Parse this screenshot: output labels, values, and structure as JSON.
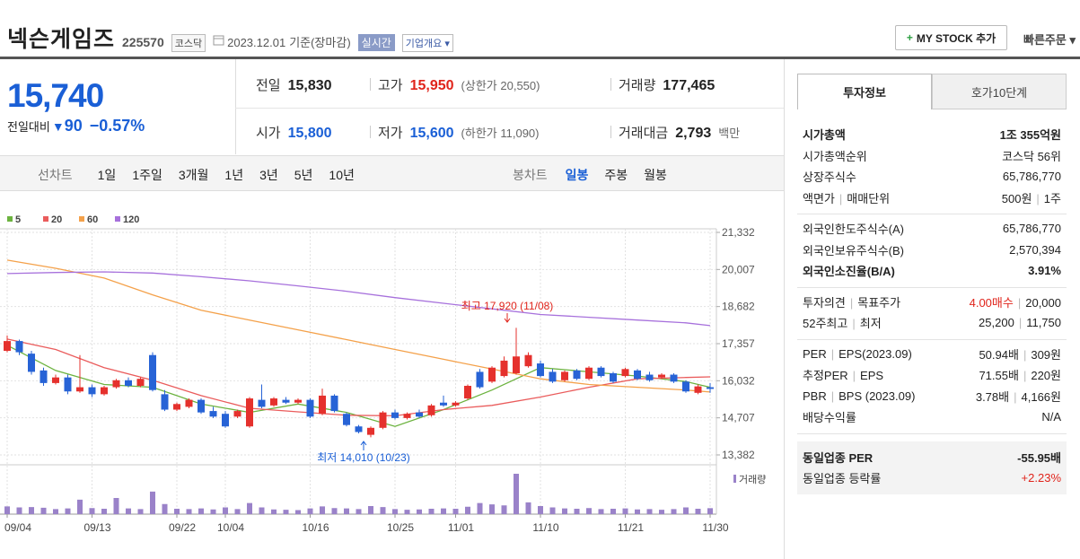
{
  "header": {
    "name": "넥슨게임즈",
    "code": "225570",
    "market": "코스닥",
    "date": "2023.12.01",
    "basis": "기준(장마감)",
    "realtime": "실시간",
    "company": "기업개요",
    "mystock": "MY STOCK 추가",
    "quick_order": "빠른주문"
  },
  "quote": {
    "price": "15,740",
    "change_label": "전일대비",
    "change": "90",
    "change_rate": "−0.57%",
    "cells": [
      {
        "label": "전일",
        "value": "15,830"
      },
      {
        "label": "고가",
        "value": "15,950",
        "extra": "(상한가 20,550)"
      },
      {
        "label": "거래량",
        "value": "177,465"
      },
      {
        "label": "시가",
        "value": "15,800"
      },
      {
        "label": "저가",
        "value": "15,600",
        "extra": "(하한가 11,090)"
      },
      {
        "label": "거래대금",
        "value": "2,793",
        "extra": "백만"
      }
    ]
  },
  "periods": {
    "line_label": "선차트",
    "line": [
      "1일",
      "1주일",
      "3개월",
      "1년",
      "3년",
      "5년",
      "10년"
    ],
    "candle_label": "봉차트",
    "candle": [
      "일봉",
      "주봉",
      "월봉"
    ]
  },
  "chart_data": {
    "type": "candlestick",
    "categories": [
      "09/04",
      null,
      null,
      null,
      null,
      null,
      null,
      "09/13",
      null,
      null,
      null,
      null,
      null,
      null,
      "09/22",
      null,
      null,
      null,
      "10/04",
      null,
      null,
      null,
      null,
      null,
      null,
      "10/16",
      null,
      null,
      null,
      null,
      null,
      null,
      "10/25",
      null,
      null,
      null,
      null,
      "11/01",
      null,
      null,
      null,
      null,
      null,
      null,
      "11/10",
      null,
      null,
      null,
      null,
      null,
      null,
      "11/21",
      null,
      null,
      null,
      null,
      null,
      null,
      "11/30"
    ],
    "candles": [
      [
        17100,
        17650,
        17050,
        17450
      ],
      [
        17450,
        17500,
        16950,
        17050
      ],
      [
        17000,
        17100,
        16250,
        16350
      ],
      [
        16400,
        16500,
        15850,
        15950
      ],
      [
        15950,
        16250,
        15900,
        16150
      ],
      [
        16150,
        16250,
        15550,
        15650
      ],
      [
        15650,
        16950,
        15600,
        15800
      ],
      [
        15800,
        15900,
        15450,
        15550
      ],
      [
        15550,
        15850,
        15500,
        15800
      ],
      [
        15800,
        16100,
        15750,
        16050
      ],
      [
        16050,
        16150,
        15800,
        15850
      ],
      [
        15850,
        16150,
        15800,
        16100
      ],
      [
        16950,
        17050,
        15650,
        15700
      ],
      [
        15550,
        15700,
        14950,
        15000
      ],
      [
        15000,
        15250,
        14950,
        15200
      ],
      [
        15100,
        15400,
        15050,
        15350
      ],
      [
        15350,
        15400,
        14850,
        14900
      ],
      [
        14950,
        15100,
        14700,
        14750
      ],
      [
        14850,
        14950,
        14350,
        14400
      ],
      [
        14750,
        15000,
        14700,
        14950
      ],
      [
        14400,
        15450,
        14350,
        15400
      ],
      [
        15350,
        15900,
        15050,
        15100
      ],
      [
        15150,
        15450,
        15100,
        15400
      ],
      [
        15350,
        15450,
        15200,
        15250
      ],
      [
        15250,
        15400,
        15200,
        15350
      ],
      [
        15350,
        15400,
        14700,
        14750
      ],
      [
        14850,
        15750,
        14800,
        15500
      ],
      [
        15500,
        15550,
        14900,
        14950
      ],
      [
        14850,
        14900,
        14400,
        14450
      ],
      [
        14400,
        14450,
        14150,
        14200
      ],
      [
        14100,
        14400,
        14010,
        14350
      ],
      [
        14350,
        14950,
        14300,
        14900
      ],
      [
        14900,
        15000,
        14650,
        14700
      ],
      [
        14700,
        14900,
        14650,
        14850
      ],
      [
        14900,
        15000,
        14700,
        14750
      ],
      [
        14800,
        15200,
        14750,
        15150
      ],
      [
        15250,
        15500,
        15100,
        15150
      ],
      [
        15150,
        15300,
        15100,
        15250
      ],
      [
        15400,
        15900,
        15350,
        15850
      ],
      [
        16350,
        16450,
        15750,
        15800
      ],
      [
        16000,
        16550,
        15950,
        16500
      ],
      [
        16200,
        16900,
        16150,
        16750
      ],
      [
        16300,
        17920,
        16250,
        16900
      ],
      [
        16550,
        17050,
        16500,
        16950
      ],
      [
        16650,
        16750,
        16150,
        16200
      ],
      [
        16350,
        16450,
        15950,
        16000
      ],
      [
        16050,
        16400,
        16000,
        16350
      ],
      [
        16400,
        16450,
        16050,
        16100
      ],
      [
        16100,
        16550,
        16050,
        16500
      ],
      [
        16500,
        16550,
        16150,
        16200
      ],
      [
        16300,
        16350,
        15950,
        16000
      ],
      [
        16200,
        16500,
        16150,
        16450
      ],
      [
        16400,
        16450,
        16050,
        16100
      ],
      [
        16250,
        16350,
        16000,
        16050
      ],
      [
        16150,
        16300,
        16100,
        16250
      ],
      [
        16250,
        16300,
        15950,
        16000
      ],
      [
        16000,
        16050,
        15600,
        15650
      ],
      [
        15600,
        15900,
        15550,
        15830
      ],
      [
        15800,
        15950,
        15600,
        15740
      ]
    ],
    "up_color": "#e5312d",
    "down_color": "#2763d6",
    "ylim": [
      13382,
      21332
    ],
    "yticks": [
      {
        "value": 13382,
        "label": "13,382"
      },
      {
        "value": 14707,
        "label": "14,707"
      },
      {
        "value": 16032,
        "label": "16,032"
      },
      {
        "value": 17357,
        "label": "17,357"
      },
      {
        "value": 18682,
        "label": "18,682"
      },
      {
        "value": 20007,
        "label": "20,007"
      },
      {
        "value": 21332,
        "label": "21,332"
      }
    ],
    "grid": true,
    "series": [
      {
        "name": "5",
        "color": "#6cb33f",
        "x": [
          0,
          4,
          8,
          12,
          16,
          20,
          24,
          28,
          32,
          36,
          40,
          44,
          48,
          52,
          56,
          58
        ],
        "values": [
          17300,
          16400,
          15900,
          15800,
          15200,
          14900,
          15200,
          14900,
          14400,
          15000,
          15700,
          16500,
          16350,
          16200,
          16000,
          15800
        ]
      },
      {
        "name": "20",
        "color": "#ea5c5c",
        "x": [
          0,
          4,
          8,
          12,
          16,
          20,
          24,
          28,
          32,
          36,
          40,
          44,
          48,
          52,
          56,
          58
        ],
        "values": [
          17520,
          17150,
          16500,
          16050,
          15500,
          15050,
          14920,
          14800,
          14780,
          15000,
          15150,
          15450,
          15800,
          16100,
          16150,
          16170
        ]
      },
      {
        "name": "60",
        "color": "#f4a14a",
        "x": [
          0,
          4,
          8,
          12,
          16,
          20,
          24,
          28,
          32,
          36,
          40,
          44,
          48,
          52,
          56,
          58
        ],
        "values": [
          20340,
          20050,
          19700,
          19100,
          18550,
          18200,
          17850,
          17500,
          17150,
          16800,
          16450,
          16100,
          15900,
          15800,
          15700,
          15630
        ]
      },
      {
        "name": "120",
        "color": "#a771dc",
        "x": [
          0,
          4,
          8,
          12,
          16,
          20,
          24,
          28,
          32,
          36,
          40,
          44,
          48,
          52,
          56,
          58
        ],
        "values": [
          19860,
          19900,
          19920,
          19880,
          19750,
          19600,
          19420,
          19230,
          19000,
          18800,
          18600,
          18400,
          18300,
          18200,
          18100,
          18000
        ]
      }
    ],
    "volume": {
      "name": "거래량",
      "color": "#9a82c9",
      "values": [
        230000,
        200000,
        210000,
        190000,
        150000,
        170000,
        430000,
        180000,
        160000,
        480000,
        170000,
        150000,
        670000,
        300000,
        160000,
        150000,
        170000,
        140000,
        200000,
        150000,
        330000,
        200000,
        140000,
        130000,
        120000,
        170000,
        230000,
        180000,
        170000,
        150000,
        240000,
        210000,
        150000,
        130000,
        140000,
        160000,
        170000,
        160000,
        220000,
        330000,
        290000,
        260000,
        1200000,
        350000,
        240000,
        200000,
        170000,
        160000,
        180000,
        150000,
        160000,
        170000,
        140000,
        150000,
        130000,
        150000,
        200000,
        160000,
        177465
      ]
    },
    "annotations": [
      {
        "text": "최고 17,920 (11/08)"
      },
      {
        "text": "최저 14,010 (10/23)"
      }
    ]
  },
  "side": {
    "tabs": [
      "투자정보",
      "호가10단계"
    ],
    "groups": [
      [
        {
          "label": [
            "시가총액"
          ],
          "value": [
            "1조 355억원"
          ]
        },
        {
          "label": [
            "시가총액순위"
          ],
          "value": [
            "코스닥 56위"
          ]
        },
        {
          "label": [
            "상장주식수"
          ],
          "value": [
            "65,786,770"
          ]
        },
        {
          "label": [
            "액면가",
            "매매단위"
          ],
          "value": [
            "500원",
            "1주"
          ]
        }
      ],
      [
        {
          "label": [
            "외국인한도주식수(A)"
          ],
          "value": [
            "65,786,770"
          ]
        },
        {
          "label": [
            "외국인보유주식수(B)"
          ],
          "value": [
            "2,570,394"
          ]
        },
        {
          "label": [
            "외국인소진율(B/A)"
          ],
          "value": [
            "3.91%"
          ]
        }
      ],
      [
        {
          "label": [
            "투자의견",
            "목표주가"
          ],
          "value": [
            "4.00매수",
            "20,000"
          ]
        },
        {
          "label": [
            "52주최고",
            "최저"
          ],
          "value": [
            "25,200",
            "11,750"
          ]
        }
      ],
      [
        {
          "label": [
            "PER",
            "EPS(2023.09)"
          ],
          "value": [
            "50.94배",
            "309원"
          ]
        },
        {
          "label": [
            "추정PER",
            "EPS"
          ],
          "value": [
            "71.55배",
            "220원"
          ]
        },
        {
          "label": [
            "PBR",
            "BPS (2023.09)"
          ],
          "value": [
            "3.78배",
            "4,166원"
          ]
        },
        {
          "label": [
            "배당수익률"
          ],
          "value": [
            "N/A"
          ]
        }
      ],
      [
        {
          "label": [
            "동일업종 PER"
          ],
          "value": [
            "-55.95배"
          ]
        },
        {
          "label": [
            "동일업종 등락률"
          ],
          "value": [
            "+2.23%"
          ]
        }
      ]
    ]
  }
}
